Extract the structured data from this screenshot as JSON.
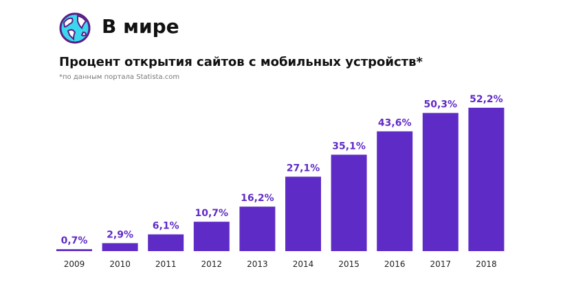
{
  "header": {
    "title": "В мире",
    "icon": "globe-icon"
  },
  "chart_data": {
    "type": "bar",
    "title": "Процент открытия сайтов с мобильных устройств*",
    "subtitle": "*по данным портала Statista.com",
    "categories": [
      "2009",
      "2010",
      "2011",
      "2012",
      "2013",
      "2014",
      "2015",
      "2016",
      "2017",
      "2018"
    ],
    "values": [
      0.7,
      2.9,
      6.1,
      10.7,
      16.2,
      27.1,
      35.1,
      43.6,
      50.3,
      52.2
    ],
    "labels": [
      "0,7%",
      "2,9%",
      "6,1%",
      "10,7%",
      "16,2%",
      "27,1%",
      "35,1%",
      "43,6%",
      "50,3%",
      "52,2%"
    ],
    "ylim": [
      0,
      55
    ],
    "grid": false,
    "colors": {
      "bar": "#5f2bc6",
      "label": "#5f2bc6",
      "globe_fill": "#3ad8ef",
      "globe_outline": "#5b1f86"
    }
  }
}
